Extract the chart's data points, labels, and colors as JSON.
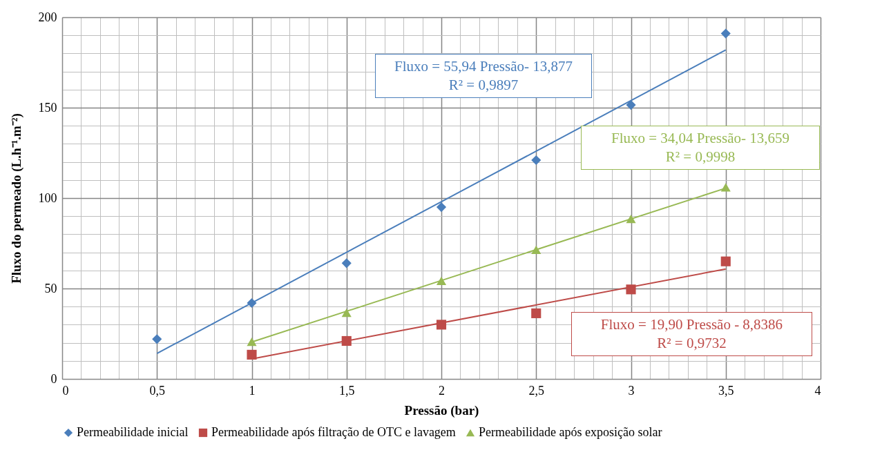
{
  "chart_data": {
    "type": "scatter",
    "xlabel": "Pressão (bar)",
    "ylabel": "Fluxo do permeado (L.h⁻¹.m⁻²)",
    "xlim": [
      0,
      4
    ],
    "ylim": [
      0,
      200
    ],
    "xticks": [
      0,
      {
        "value": 0.1,
        "label": null
      },
      {
        "value": 0.2,
        "label": null
      },
      {
        "value": 0.3,
        "label": null
      },
      {
        "value": 0.4,
        "label": null
      },
      {
        "value": 0.5,
        "label": "0,5"
      },
      {
        "value": 0.6,
        "label": null
      },
      {
        "value": 0.7,
        "label": null
      },
      {
        "value": 0.8,
        "label": null
      },
      {
        "value": 0.9,
        "label": null
      },
      1,
      {
        "value": 1.1,
        "label": null
      },
      {
        "value": 1.2,
        "label": null
      },
      {
        "value": 1.3,
        "label": null
      },
      {
        "value": 1.4,
        "label": null
      },
      {
        "value": 1.5,
        "label": "1,5"
      },
      {
        "value": 1.6,
        "label": null
      },
      {
        "value": 1.7,
        "label": null
      },
      {
        "value": 1.8,
        "label": null
      },
      {
        "value": 1.9,
        "label": null
      },
      2,
      {
        "value": 2.1,
        "label": null
      },
      {
        "value": 2.2,
        "label": null
      },
      {
        "value": 2.3,
        "label": null
      },
      {
        "value": 2.4,
        "label": null
      },
      {
        "value": 2.5,
        "label": "2,5"
      },
      {
        "value": 2.6,
        "label": null
      },
      {
        "value": 2.7,
        "label": null
      },
      {
        "value": 2.8,
        "label": null
      },
      {
        "value": 2.9,
        "label": null
      },
      3,
      {
        "value": 3.1,
        "label": null
      },
      {
        "value": 3.2,
        "label": null
      },
      {
        "value": 3.3,
        "label": null
      },
      {
        "value": 3.4,
        "label": null
      },
      {
        "value": 3.5,
        "label": "3,5"
      },
      {
        "value": 3.6,
        "label": null
      },
      {
        "value": 3.7,
        "label": null
      },
      {
        "value": 3.8,
        "label": null
      },
      {
        "value": 3.9,
        "label": null
      },
      4
    ],
    "yticks": [
      0,
      {
        "value": 10,
        "label": null
      },
      {
        "value": 20,
        "label": null
      },
      {
        "value": 30,
        "label": null
      },
      {
        "value": 40,
        "label": null
      },
      50,
      {
        "value": 60,
        "label": null
      },
      {
        "value": 70,
        "label": null
      },
      {
        "value": 80,
        "label": null
      },
      {
        "value": 90,
        "label": null
      },
      100,
      {
        "value": 110,
        "label": null
      },
      {
        "value": 120,
        "label": null
      },
      {
        "value": 130,
        "label": null
      },
      {
        "value": 140,
        "label": null
      },
      150,
      {
        "value": 160,
        "label": null
      },
      {
        "value": 170,
        "label": null
      },
      {
        "value": 180,
        "label": null
      },
      {
        "value": 190,
        "label": null
      },
      200
    ],
    "grid": true,
    "legend": "bottom",
    "series": [
      {
        "name": "Permeabilidade inicial",
        "color": "#4a7ebb",
        "marker": "diamond",
        "x": [
          0.5,
          1,
          1.5,
          2,
          2.5,
          3,
          3.5
        ],
        "values": [
          22,
          42,
          64,
          95,
          121,
          151.5,
          191
        ]
      },
      {
        "name": "Permeabilidade após filtração de OTC e lavagem",
        "color": "#be4b48",
        "marker": "square",
        "x": [
          1,
          1.5,
          2,
          2.5,
          3,
          3.5
        ],
        "values": [
          13.4,
          21,
          30,
          36.3,
          49.5,
          65
        ]
      },
      {
        "name": "Permeabilidade após exposição solar",
        "color": "#98b954",
        "marker": "triangle",
        "x": [
          1,
          1.5,
          2,
          2.5,
          3,
          3.5
        ],
        "values": [
          20.6,
          36.6,
          54.2,
          71.4,
          88.5,
          106
        ]
      },
      {
        "type": "line",
        "color": "#4a7ebb",
        "marker": "none",
        "x": [
          0.5,
          3.5
        ],
        "values": [
          14.1,
          181.9
        ]
      },
      {
        "type": "line",
        "color": "#be4b48",
        "marker": "none",
        "x": [
          1,
          3.5
        ],
        "values": [
          11.1,
          60.8
        ]
      },
      {
        "type": "line",
        "color": "#98b954",
        "marker": "none",
        "x": [
          1,
          3.5
        ],
        "values": [
          20.4,
          105.5
        ]
      }
    ],
    "annotations": [
      "Fluxo = 55,94 Pressão- 13,877\nR² = 0,9897",
      "Fluxo = 19,90 Pressão - 8,8386\nR² = 0,9732",
      "Fluxo = 34,04 Pressão- 13,659\nR² = 0,9998"
    ]
  }
}
